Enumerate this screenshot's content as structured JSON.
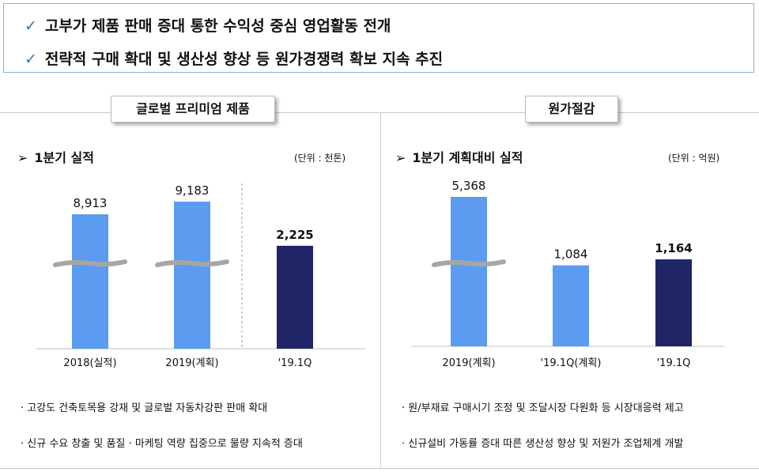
{
  "summary": {
    "check_icon": "checkmark-icon",
    "points": [
      "고부가 제품 판매 증대 통한 수익성 중심 영업활동 전개",
      "전략적 구매 확대 및 생산성 향상 등 원가경쟁력 확보 지속 추진"
    ]
  },
  "left_panel": {
    "tab_label": "글로벌 프리미엄 제품",
    "subheading": "1분기 실적",
    "unit": "(단위 : 천톤)",
    "bullets": [
      "·  고강도 건축토목용 강재 및 글로벌 자동차강판 판매 확대",
      "·  신규 수요 창출 및 품질 · 마케팅 역량 집중으로 물량 지속적 증대"
    ]
  },
  "right_panel": {
    "tab_label": "원가절감",
    "subheading": "1분기 계획대비 실적",
    "unit": "(단위 : 억원)",
    "bullets": [
      "·  원/부재료 구매시기 조정 및 조달시장 다원화 등 시장대응력 제고",
      "·  신규설비 가동률 증대 따른 생산성 향상 및 저원가 조업체계 개발"
    ]
  },
  "colors": {
    "light_bar": "#5b9bf0",
    "dark_bar": "#1f2566",
    "break_mark": "#a6a6a6",
    "check": "#2f6fb8",
    "frame": "#8fb0d2"
  },
  "chart_data": [
    {
      "type": "bar",
      "title": "1분기 실적",
      "unit": "(단위 : 천톤)",
      "categories": [
        "2018(실적)",
        "2019(계획)",
        "'19.1Q"
      ],
      "values": [
        8913,
        9183,
        2225
      ],
      "value_labels": [
        "8,913",
        "9,183",
        "2,225"
      ],
      "bar_colors": [
        "light",
        "light",
        "dark"
      ],
      "broken_axis": [
        true,
        true,
        false
      ],
      "separator_before_index": 2
    },
    {
      "type": "bar",
      "title": "1분기 계획대비 실적",
      "unit": "(단위 : 억원)",
      "categories": [
        "2019(계획)",
        "'19.1Q(계획)",
        "'19.1Q"
      ],
      "values": [
        5368,
        1084,
        1164
      ],
      "value_labels": [
        "5,368",
        "1,084",
        "1,164"
      ],
      "bar_colors": [
        "light",
        "light",
        "dark"
      ],
      "broken_axis": [
        true,
        false,
        false
      ]
    }
  ]
}
